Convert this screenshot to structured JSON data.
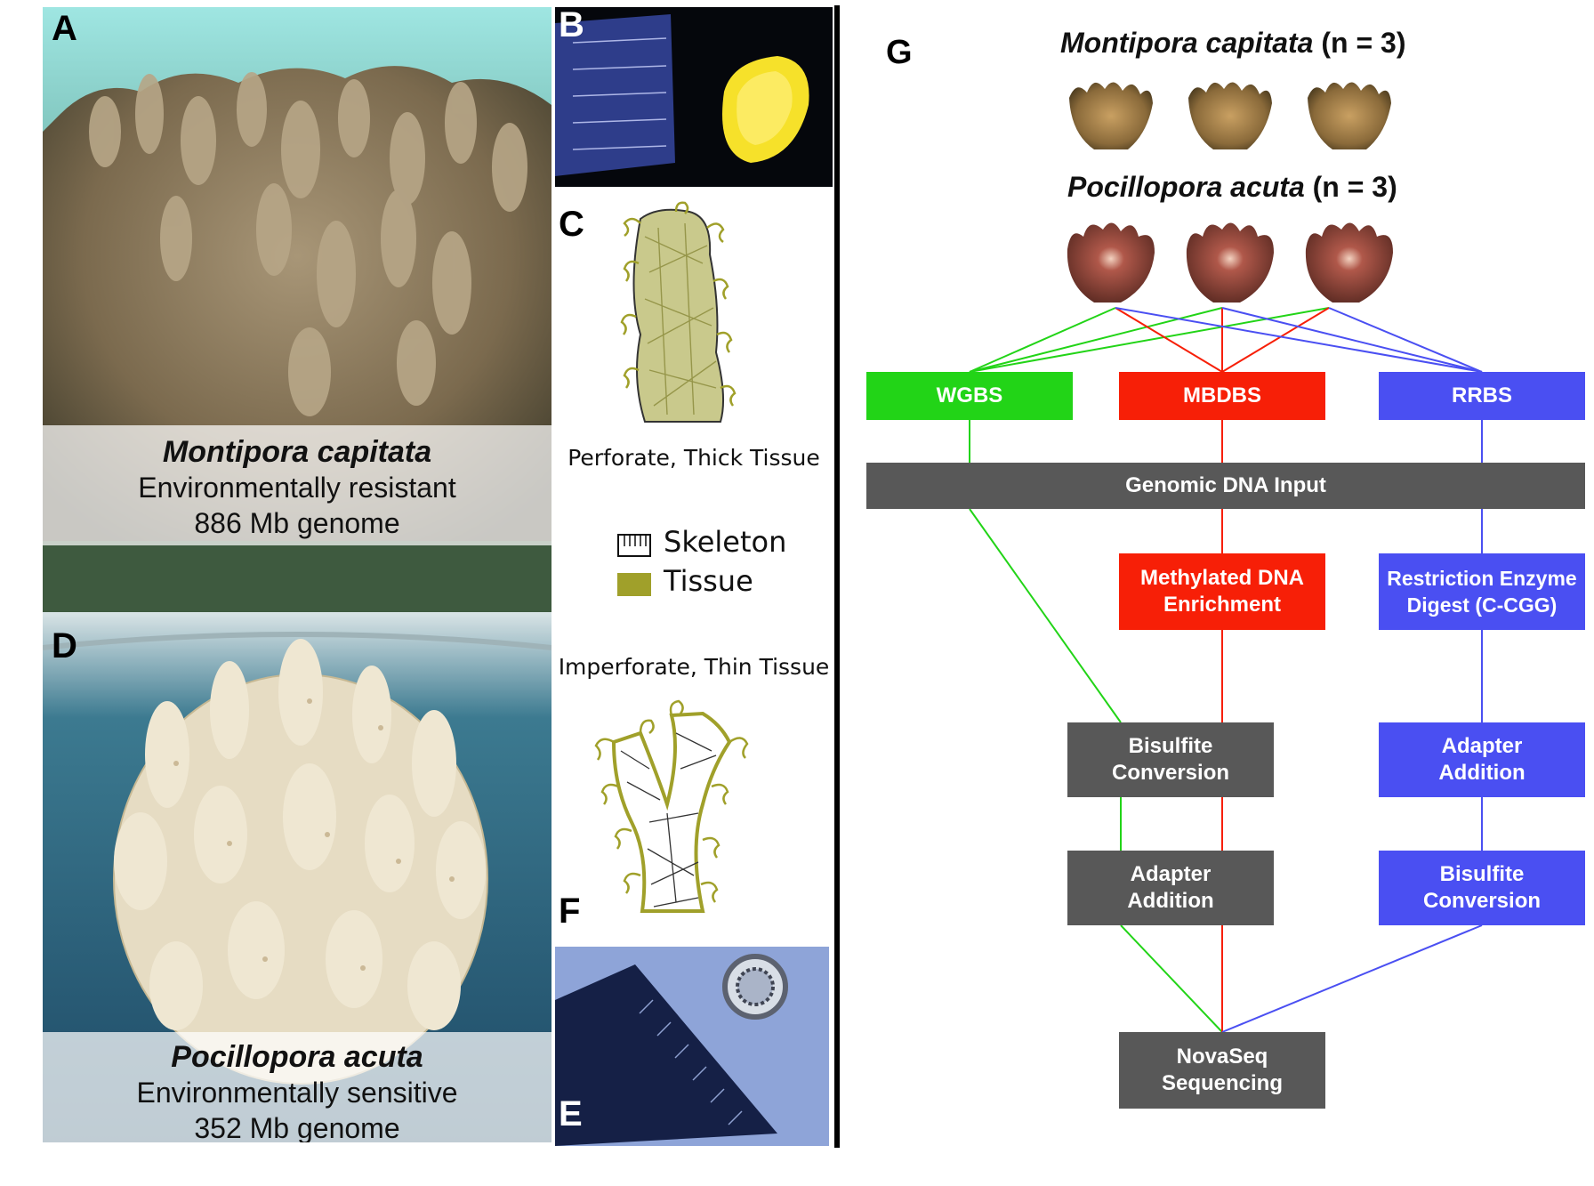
{
  "panels": {
    "A": {
      "letter": "A",
      "species": "Montipora capitata",
      "trait": "Environmentally resistant",
      "genome": "886 Mb genome"
    },
    "B": {
      "letter": "B"
    },
    "C": {
      "letter": "C",
      "caption": "Perforate, Thick Tissue"
    },
    "legend": {
      "skeleton": "Skeleton",
      "tissue": "Tissue",
      "tissue_color": "#a0a02a"
    },
    "F_caption": "Imperforate, Thin Tissue",
    "D": {
      "letter": "D",
      "species": "Pocillopora acuta",
      "trait": "Environmentally sensitive",
      "genome": "352 Mb genome"
    },
    "E": {
      "letter": "E"
    },
    "F": {
      "letter": "F"
    },
    "G": {
      "letter": "G",
      "mc_title": "Montipora capitata",
      "mc_n": " (n = 3)",
      "pa_title": "Pocillopora acuta",
      "pa_n": " (n = 3)",
      "boxes": {
        "wgbs": "WGBS",
        "mbdbs": "MBDBS",
        "rrbs": "RRBS",
        "genomic_input": "Genomic DNA Input",
        "methylated_1": "Methylated DNA",
        "methylated_2": "Enrichment",
        "restriction_1": "Restriction Enzyme",
        "restriction_2": "Digest (C-CGG)",
        "bisulfite_1": "Bisulfite",
        "bisulfite_2": "Conversion",
        "adapter_1": "Adapter",
        "adapter_2": "Addition",
        "novaseq_1": "NovaSeq",
        "novaseq_2": "Sequencing"
      },
      "colors": {
        "wgbs": "#22d417",
        "mbdbs": "#f71f07",
        "rrbs": "#4a4ff2",
        "shared": "#585858"
      }
    }
  }
}
